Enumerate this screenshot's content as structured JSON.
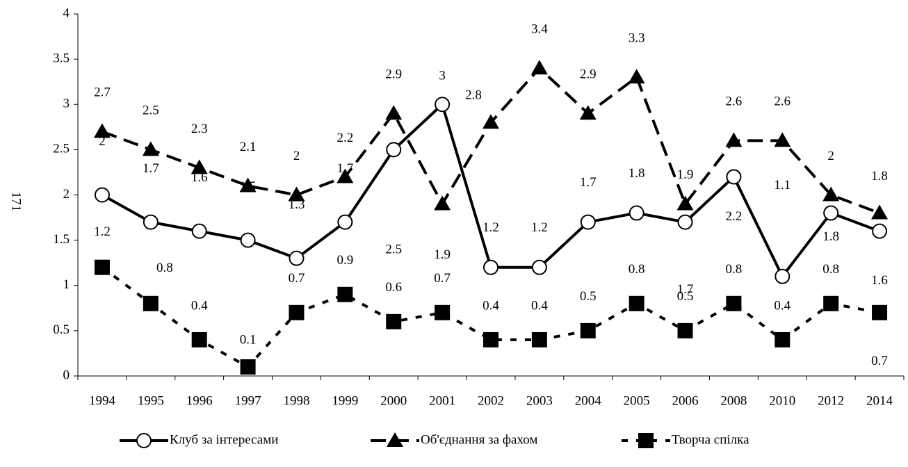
{
  "chart_data": {
    "type": "line",
    "ylabel": "171",
    "categories": [
      "1994",
      "1995",
      "1996",
      "1997",
      "1998",
      "1999",
      "2000",
      "2001",
      "2002",
      "2003",
      "2004",
      "2005",
      "2006",
      "2008",
      "2010",
      "2012",
      "2014"
    ],
    "series": [
      {
        "name": "Клуб за інтересами",
        "color": "#000000",
        "marker": "circle",
        "dash": "solid",
        "values": [
          2,
          1.7,
          1.6,
          1.5,
          1.3,
          1.7,
          2.5,
          3,
          1.2,
          1.2,
          1.7,
          1.8,
          1.7,
          2.2,
          1.1,
          1.8,
          1.6
        ]
      },
      {
        "name": "Об'єднання за фахом",
        "color": "#000000",
        "marker": "triangle",
        "dash": "long",
        "values": [
          2.7,
          2.5,
          2.3,
          2.1,
          2,
          2.2,
          2.9,
          1.9,
          2.8,
          3.4,
          2.9,
          3.3,
          1.9,
          2.6,
          2.6,
          2,
          1.8
        ]
      },
      {
        "name": "Творча спілка",
        "color": "#000000",
        "marker": "square",
        "dash": "short",
        "values": [
          1.2,
          0.8,
          0.4,
          0.1,
          0.7,
          0.9,
          0.6,
          0.7,
          0.4,
          0.4,
          0.5,
          0.8,
          0.5,
          0.8,
          0.4,
          0.8,
          0.7
        ]
      }
    ],
    "ylim": [
      0,
      4
    ],
    "yticks": [
      0,
      0.5,
      1,
      1.5,
      2,
      2.5,
      3,
      3.5,
      4
    ],
    "grid": false,
    "legend": "bottom"
  }
}
